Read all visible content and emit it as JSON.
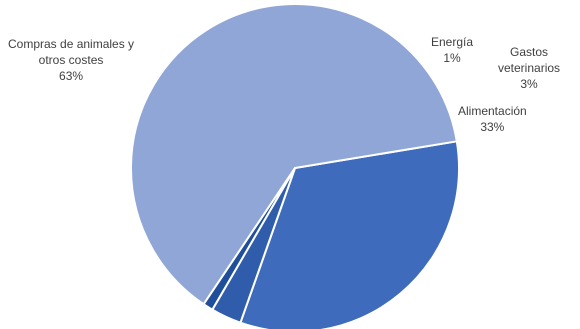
{
  "chart_data": {
    "type": "pie",
    "title": "",
    "slices": [
      {
        "label_lines": [
          "Alimentación"
        ],
        "percent_label": "33%",
        "value": 33,
        "color": "#3e6bbb"
      },
      {
        "label_lines": [
          "Compras de animales y",
          "otros costes"
        ],
        "percent_label": "63%",
        "value": 63,
        "color": "#8fa6d6"
      },
      {
        "label_lines": [
          "Energía"
        ],
        "percent_label": "1%",
        "value": 1,
        "color": "#1f4e9a"
      },
      {
        "label_lines": [
          "Gastos",
          "veterinarios"
        ],
        "percent_label": "3%",
        "value": 3,
        "color": "#2f5dab"
      }
    ],
    "legend": "none",
    "start_direction": "bottom-ish, slices drawn counter-clockwise from Alimentación"
  }
}
